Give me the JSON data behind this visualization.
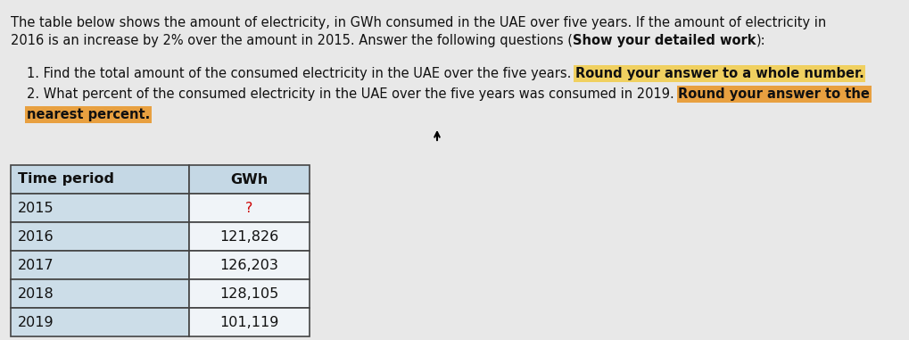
{
  "bg_color": "#e8e8e8",
  "text_color": "#111111",
  "highlight_yellow": "#f0d060",
  "highlight_orange": "#e8a040",
  "highlight_red_text": "#cc0000",
  "header_bg": "#c5d8e5",
  "cell_left_bg": "#ccdde8",
  "cell_right_bg": "#f0f4f8",
  "table_rows": [
    [
      "Time period",
      "GWh"
    ],
    [
      "2015",
      "?"
    ],
    [
      "2016",
      "121,826"
    ],
    [
      "2017",
      "126,203"
    ],
    [
      "2018",
      "128,105"
    ],
    [
      "2019",
      "101,119"
    ]
  ],
  "fontsize_body": 10.5,
  "fontsize_table": 11.5
}
